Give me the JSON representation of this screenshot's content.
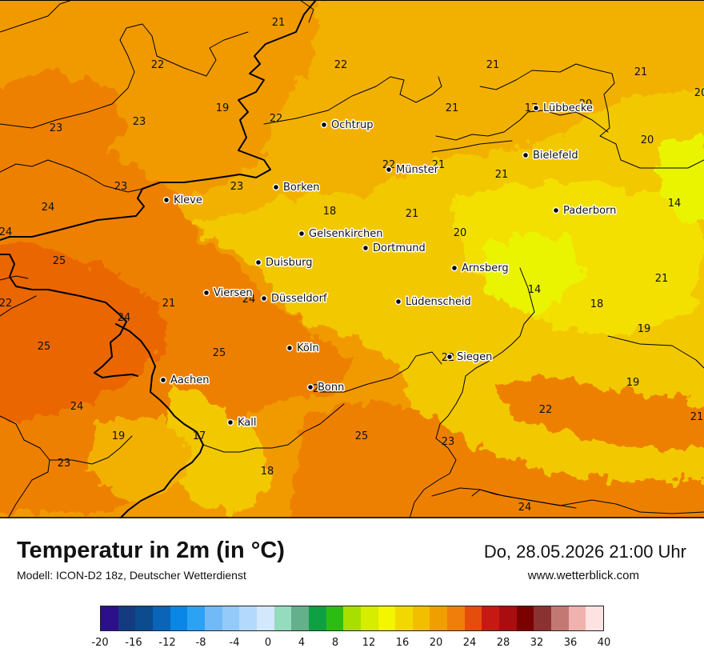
{
  "header": {
    "title": "Temperatur in 2m (in °C)",
    "model": "Modell: ICON-D2 18z, Deutscher Wetterdienst",
    "datetime": "Do, 28.05.2026 21:00 Uhr",
    "website": "www.wetterblick.com"
  },
  "colors": {
    "t14": "#eaf400",
    "t16": "#f4e000",
    "t18": "#f2c800",
    "t20": "#f2b100",
    "t22": "#f09a00",
    "t24": "#ee8000",
    "t26": "#ea6600"
  },
  "legend": {
    "colors": [
      "#2c0f8a",
      "#143b80",
      "#0b4b8e",
      "#0a64b8",
      "#0a86e6",
      "#2ca2f4",
      "#72baf7",
      "#93cafa",
      "#b3d9fc",
      "#d4e8fd",
      "#95dbbe",
      "#64b08c",
      "#0fa043",
      "#2dbc12",
      "#a8df00",
      "#d6ec00",
      "#f4f500",
      "#f3d800",
      "#f1bf00",
      "#f19f00",
      "#ef7e0a",
      "#e44d0c",
      "#c71914",
      "#a90d0f",
      "#7b0000",
      "#8a3232",
      "#c47873",
      "#f0b2ae",
      "#fde2e2"
    ],
    "labels": [
      "-20",
      "-16",
      "-12",
      "-8",
      "-4",
      "0",
      "4",
      "8",
      "12",
      "16",
      "20",
      "24",
      "28",
      "32",
      "36",
      "40"
    ]
  },
  "cities": [
    {
      "name": "Ochtrup"
    },
    {
      "name": "Lübbecke"
    },
    {
      "name": "Bielefeld"
    },
    {
      "name": "Münster"
    },
    {
      "name": "Borken"
    },
    {
      "name": "Kleve"
    },
    {
      "name": "Paderborn"
    },
    {
      "name": "Gelsenkirchen"
    },
    {
      "name": "Dortmund"
    },
    {
      "name": "Duisburg"
    },
    {
      "name": "Arnsberg"
    },
    {
      "name": "Viersen"
    },
    {
      "name": "Düsseldorf"
    },
    {
      "name": "Lüdenscheid"
    },
    {
      "name": "Köln"
    },
    {
      "name": "Siegen"
    },
    {
      "name": "Aachen"
    },
    {
      "name": "Bonn"
    },
    {
      "name": "Kall"
    }
  ],
  "values": [
    "21",
    "22",
    "22",
    "21",
    "21",
    "19",
    "22",
    "23",
    "23",
    "17",
    "20",
    "20",
    "20",
    "21",
    "21",
    "22",
    "21",
    "23",
    "23",
    "18",
    "21",
    "14",
    "24",
    "20",
    "24",
    "25",
    "21",
    "24",
    "22",
    "21",
    "24",
    "14",
    "18",
    "25",
    "25",
    "22",
    "19",
    "19",
    "25",
    "22",
    "21",
    "19",
    "17",
    "25",
    "23",
    "23",
    "18",
    "24",
    "24"
  ]
}
